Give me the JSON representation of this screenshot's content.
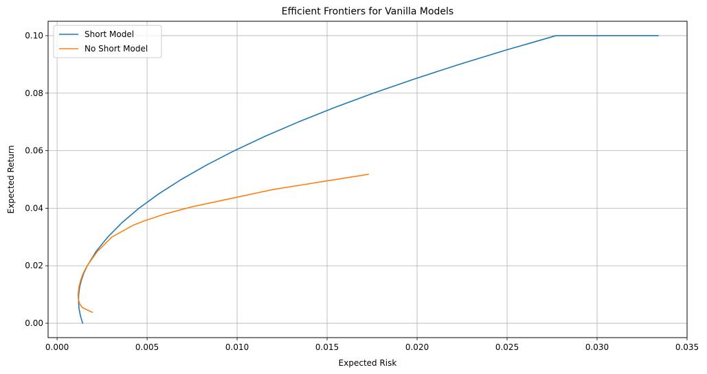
{
  "chart_data": {
    "type": "line",
    "title": "Efficient Frontiers for Vanilla Models",
    "xlabel": "Expected Risk",
    "ylabel": "Expected Return",
    "xlim": [
      -0.0005,
      0.035
    ],
    "ylim": [
      -0.005,
      0.105
    ],
    "xticks": [
      0.0,
      0.005,
      0.01,
      0.015,
      0.02,
      0.025,
      0.03,
      0.035
    ],
    "xtick_labels": [
      "0.000",
      "0.005",
      "0.010",
      "0.015",
      "0.020",
      "0.025",
      "0.030",
      "0.035"
    ],
    "yticks": [
      0.0,
      0.02,
      0.04,
      0.06,
      0.08,
      0.1
    ],
    "ytick_labels": [
      "0.00",
      "0.02",
      "0.04",
      "0.06",
      "0.08",
      "0.10"
    ],
    "grid": true,
    "legend_position": "top-left",
    "series": [
      {
        "name": "Short Model",
        "color": "#1f77b4",
        "points": [
          [
            0.00142,
            0.0
          ],
          [
            0.0013,
            0.0025
          ],
          [
            0.00122,
            0.005
          ],
          [
            0.00119,
            0.0075
          ],
          [
            0.0012,
            0.01
          ],
          [
            0.00125,
            0.0125
          ],
          [
            0.00135,
            0.015
          ],
          [
            0.00149,
            0.0175
          ],
          [
            0.00168,
            0.02
          ],
          [
            0.00217,
            0.025
          ],
          [
            0.00282,
            0.03
          ],
          [
            0.00361,
            0.035
          ],
          [
            0.00455,
            0.04
          ],
          [
            0.00565,
            0.045
          ],
          [
            0.0069,
            0.05
          ],
          [
            0.0083,
            0.055
          ],
          [
            0.00985,
            0.06
          ],
          [
            0.01155,
            0.065
          ],
          [
            0.01341,
            0.07
          ],
          [
            0.01541,
            0.075
          ],
          [
            0.01757,
            0.08
          ],
          [
            0.01988,
            0.085
          ],
          [
            0.02234,
            0.09
          ],
          [
            0.02495,
            0.095
          ],
          [
            0.02772,
            0.1
          ],
          [
            0.0334,
            0.1
          ]
        ]
      },
      {
        "name": "No Short Model",
        "color": "#ff7f0e",
        "points": [
          [
            0.00196,
            0.0038
          ],
          [
            0.00165,
            0.0047
          ],
          [
            0.0014,
            0.0055
          ],
          [
            0.00125,
            0.0068
          ],
          [
            0.00118,
            0.0085
          ],
          [
            0.00117,
            0.01
          ],
          [
            0.00121,
            0.0125
          ],
          [
            0.00131,
            0.015
          ],
          [
            0.00146,
            0.0175
          ],
          [
            0.00167,
            0.02
          ],
          [
            0.00224,
            0.025
          ],
          [
            0.00305,
            0.03
          ],
          [
            0.0042,
            0.034
          ],
          [
            0.0048,
            0.0355
          ],
          [
            0.006,
            0.038
          ],
          [
            0.0075,
            0.0405
          ],
          [
            0.009,
            0.0425
          ],
          [
            0.0105,
            0.0445
          ],
          [
            0.012,
            0.0465
          ],
          [
            0.0135,
            0.048
          ],
          [
            0.015,
            0.0495
          ],
          [
            0.0165,
            0.051
          ],
          [
            0.0173,
            0.0518
          ]
        ]
      }
    ]
  }
}
